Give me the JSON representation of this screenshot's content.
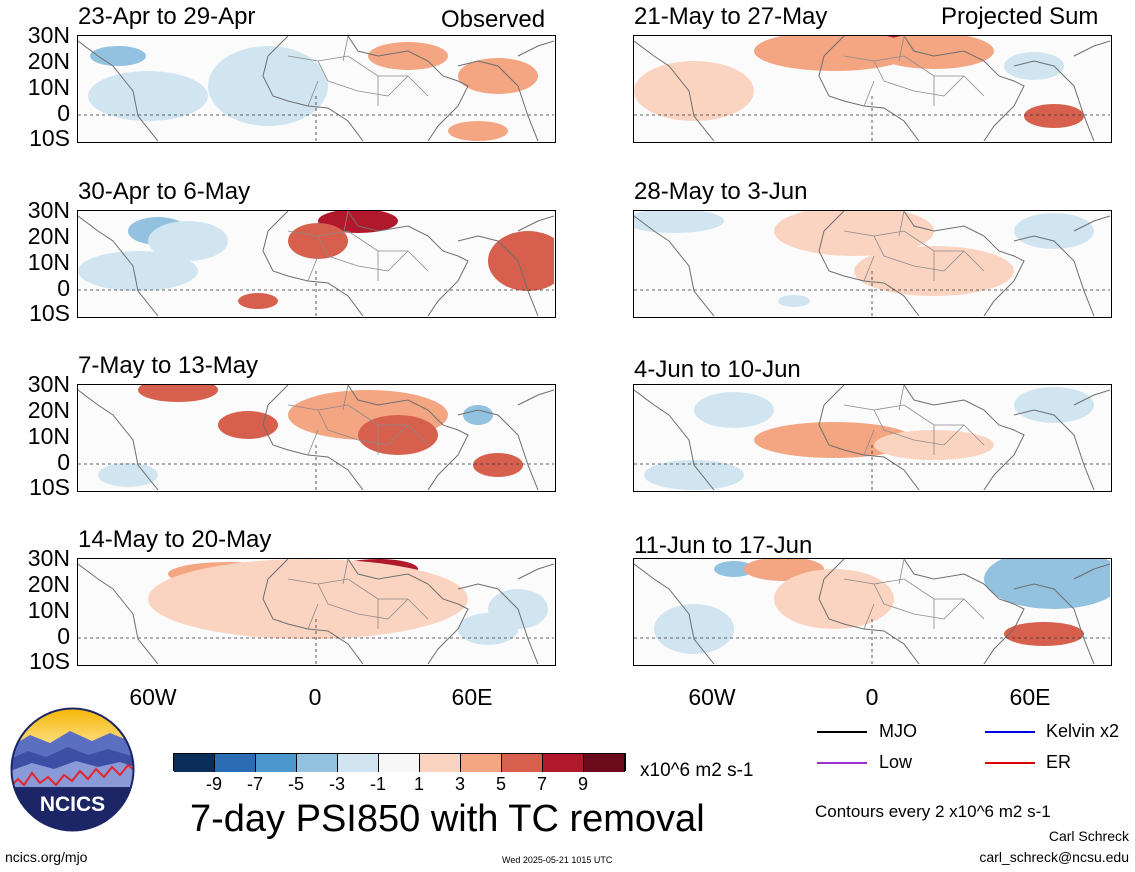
{
  "header": {
    "observed_label": "Observed",
    "projected_label": "Projected Sum"
  },
  "panels": [
    {
      "title": "23-Apr to 29-Apr"
    },
    {
      "title": "30-Apr to 6-May"
    },
    {
      "title": "7-May to 13-May"
    },
    {
      "title": "14-May to 20-May"
    },
    {
      "title": "21-May to 27-May"
    },
    {
      "title": "28-May to 3-Jun"
    },
    {
      "title": "4-Jun to 10-Jun"
    },
    {
      "title": "11-Jun to 17-Jun"
    }
  ],
  "lat_labels": [
    "30N",
    "20N",
    "10N",
    "0",
    "10S"
  ],
  "lon_labels": [
    "60W",
    "0",
    "60E"
  ],
  "colorbar": {
    "colors": [
      "#0b2d5a",
      "#2a6db5",
      "#4c97cd",
      "#93c2e0",
      "#d1e5f1",
      "#f7f7f7",
      "#fbd4c1",
      "#f4a582",
      "#d6604d",
      "#b2182b",
      "#6b0b1c"
    ],
    "ticks": [
      "-9",
      "-7",
      "-5",
      "-3",
      "-1",
      "1",
      "3",
      "5",
      "7",
      "9"
    ],
    "units": "x10^6 m2 s-1"
  },
  "legend": [
    {
      "label": "MJO",
      "color": "#000000"
    },
    {
      "label": "Kelvin x2",
      "color": "#0000dd"
    },
    {
      "label": "Low",
      "color": "#9a32cd"
    },
    {
      "label": "ER",
      "color": "#dd0000"
    }
  ],
  "main_title": "7-day PSI850 with TC removal",
  "contours_note": "Contours every 2 x10^6 m2 s-1",
  "author": "Carl Schreck",
  "email": "carl_schreck@ncsu.edu",
  "site": "ncics.org/mjo",
  "timestamp": "Wed 2025-05-21 1015 UTC",
  "logo_text": "NCICS"
}
